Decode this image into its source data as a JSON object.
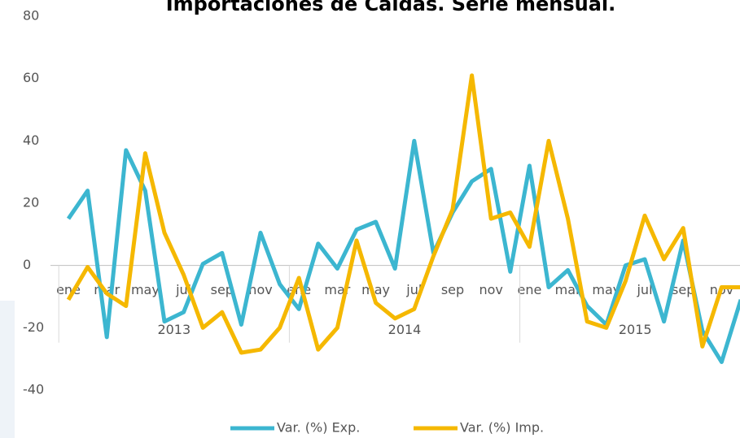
{
  "chart_data": {
    "type": "line",
    "title": "Importaciones de Caldas. Serie mensual.",
    "categories": [
      "ene",
      null,
      "mar",
      null,
      "may",
      null,
      "jul",
      null,
      "sep",
      null,
      "nov",
      null,
      "ene",
      null,
      "mar",
      null,
      "may",
      null,
      "jul",
      null,
      "sep",
      null,
      "nov",
      null,
      "ene",
      null,
      "mar",
      null,
      "may",
      null,
      "jul",
      null,
      "sep",
      null,
      "nov",
      null
    ],
    "groups": [
      "2013",
      "2014",
      "2015"
    ],
    "series": [
      {
        "name": "Var. (%) Exp.",
        "color": "#3cb6d0",
        "values": [
          15,
          24,
          -23,
          37,
          24,
          -18,
          -15,
          0.5,
          4,
          -19,
          10.5,
          -6,
          -14,
          7,
          -1,
          11.5,
          14,
          -1,
          40,
          4,
          17,
          27,
          31,
          -2,
          32,
          -7,
          -1.5,
          -13,
          -19,
          0,
          2,
          -18,
          8,
          -21,
          -31,
          -11
        ]
      },
      {
        "name": "Var. (%) Imp.",
        "color": "#f5b800",
        "values": [
          -11,
          -0.5,
          -9,
          -13,
          36,
          10.5,
          -3,
          -20,
          -15,
          -28,
          -27,
          -20,
          -4,
          -27,
          -20,
          8,
          -12,
          -17,
          -14,
          3,
          18,
          61,
          15,
          17,
          6,
          40,
          15,
          -18,
          -20,
          -5,
          16,
          2,
          12,
          -26,
          -7,
          -7
        ]
      }
    ],
    "ylim": [
      -40,
      80
    ],
    "yticks": [
      -40,
      -20,
      0,
      20,
      40,
      60,
      80
    ]
  }
}
